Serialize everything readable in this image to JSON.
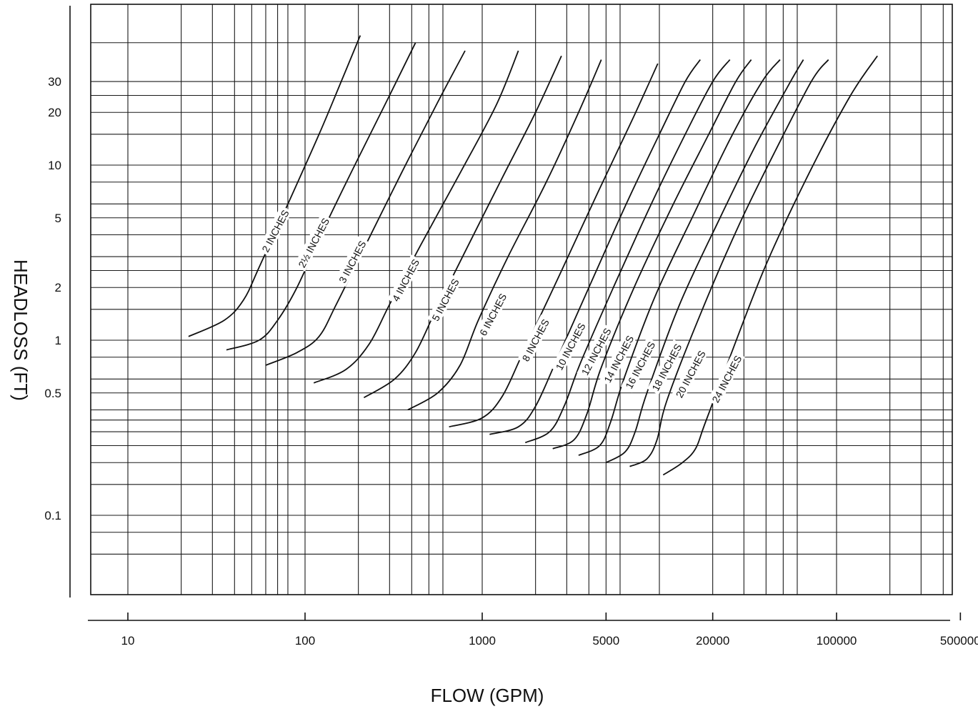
{
  "chart_data": {
    "type": "line",
    "xlabel": "FLOW (GPM)",
    "ylabel": "HEADLOSS  (FT)",
    "x_scale": "log",
    "y_scale": "log",
    "xlim": [
      6,
      600000
    ],
    "ylim": [
      0.04,
      80
    ],
    "grid": true,
    "x_ticks": [
      {
        "value": 10,
        "label": "10"
      },
      {
        "value": 100,
        "label": "100"
      },
      {
        "value": 1000,
        "label": "1000"
      },
      {
        "value": 5000,
        "label": "5000"
      },
      {
        "value": 20000,
        "label": "20000"
      },
      {
        "value": 100000,
        "label": "100000"
      },
      {
        "value": 500000,
        "label": "500000"
      }
    ],
    "y_ticks": [
      {
        "value": 30,
        "label": "30"
      },
      {
        "value": 20,
        "label": "20"
      },
      {
        "value": 10,
        "label": "10"
      },
      {
        "value": 5,
        "label": "5"
      },
      {
        "value": 2,
        "label": "2"
      },
      {
        "value": 1,
        "label": "1"
      },
      {
        "value": 0.5,
        "label": "0.5"
      },
      {
        "value": 0.1,
        "label": "0.1"
      }
    ],
    "x_gridlines": [
      10,
      20,
      30,
      40,
      50,
      60,
      70,
      80,
      100,
      200,
      300,
      400,
      500,
      600,
      1000,
      2000,
      3000,
      4000,
      5000,
      6000,
      10000,
      20000,
      30000,
      40000,
      50000,
      60000,
      100000,
      200000,
      300000,
      400000,
      500000
    ],
    "y_gridlines": [
      0.06,
      0.08,
      0.1,
      0.15,
      0.2,
      0.25,
      0.3,
      0.35,
      0.4,
      0.5,
      0.6,
      0.8,
      1,
      1.5,
      2,
      2.5,
      3,
      4,
      5,
      6,
      8,
      10,
      15,
      20,
      25,
      30,
      50
    ],
    "series": [
      {
        "name": "2 INCHES",
        "points": [
          [
            22,
            1.05
          ],
          [
            35,
            1.3
          ],
          [
            45,
            1.7
          ],
          [
            55,
            2.6
          ],
          [
            80,
            6
          ],
          [
            120,
            15
          ],
          [
            160,
            30
          ],
          [
            205,
            55
          ]
        ]
      },
      {
        "name": "2½ INCHES",
        "points": [
          [
            36,
            0.88
          ],
          [
            55,
            1.0
          ],
          [
            70,
            1.3
          ],
          [
            90,
            2.0
          ],
          [
            130,
            4.5
          ],
          [
            200,
            11
          ],
          [
            300,
            25
          ],
          [
            420,
            50
          ]
        ]
      },
      {
        "name": "3 INCHES",
        "points": [
          [
            60,
            0.72
          ],
          [
            90,
            0.85
          ],
          [
            120,
            1.05
          ],
          [
            150,
            1.6
          ],
          [
            220,
            3.5
          ],
          [
            350,
            9
          ],
          [
            550,
            22
          ],
          [
            800,
            45
          ]
        ]
      },
      {
        "name": "4 INCHES",
        "points": [
          [
            112,
            0.57
          ],
          [
            170,
            0.68
          ],
          [
            230,
            0.95
          ],
          [
            300,
            1.6
          ],
          [
            450,
            3.5
          ],
          [
            750,
            9
          ],
          [
            1200,
            22
          ],
          [
            1600,
            45
          ]
        ]
      },
      {
        "name": "5 INCHES",
        "points": [
          [
            215,
            0.47
          ],
          [
            320,
            0.6
          ],
          [
            420,
            0.85
          ],
          [
            550,
            1.5
          ],
          [
            800,
            3.2
          ],
          [
            1300,
            8.5
          ],
          [
            2000,
            20
          ],
          [
            2800,
            42
          ]
        ]
      },
      {
        "name": "6 INCHES",
        "points": [
          [
            380,
            0.4
          ],
          [
            560,
            0.5
          ],
          [
            750,
            0.72
          ],
          [
            950,
            1.3
          ],
          [
            1400,
            3
          ],
          [
            2300,
            8
          ],
          [
            3500,
            20
          ],
          [
            4700,
            40
          ]
        ]
      },
      {
        "name": "8 INCHES",
        "points": [
          [
            650,
            0.32
          ],
          [
            1000,
            0.36
          ],
          [
            1300,
            0.48
          ],
          [
            1700,
            0.85
          ],
          [
            2700,
            2.3
          ],
          [
            4500,
            7
          ],
          [
            7000,
            18
          ],
          [
            9800,
            38
          ]
        ]
      },
      {
        "name": "10 INCHES",
        "points": [
          [
            1100,
            0.29
          ],
          [
            1600,
            0.32
          ],
          [
            2000,
            0.42
          ],
          [
            2600,
            0.75
          ],
          [
            4000,
            2
          ],
          [
            6500,
            6
          ],
          [
            10000,
            15
          ],
          [
            14000,
            30
          ],
          [
            17000,
            40
          ]
        ]
      },
      {
        "name": "12 INCHES",
        "points": [
          [
            1750,
            0.26
          ],
          [
            2400,
            0.3
          ],
          [
            2900,
            0.42
          ],
          [
            3600,
            0.75
          ],
          [
            5500,
            2
          ],
          [
            9000,
            6
          ],
          [
            14000,
            15
          ],
          [
            20000,
            30
          ],
          [
            25000,
            40
          ]
        ]
      },
      {
        "name": "14 INCHES",
        "points": [
          [
            2500,
            0.24
          ],
          [
            3300,
            0.27
          ],
          [
            3900,
            0.38
          ],
          [
            4700,
            0.7
          ],
          [
            7200,
            2
          ],
          [
            12000,
            6
          ],
          [
            19000,
            15
          ],
          [
            27000,
            30
          ],
          [
            33000,
            40
          ]
        ]
      },
      {
        "name": "16 INCHES",
        "points": [
          [
            3500,
            0.22
          ],
          [
            4600,
            0.25
          ],
          [
            5300,
            0.34
          ],
          [
            6300,
            0.6
          ],
          [
            9500,
            1.8
          ],
          [
            16000,
            5.5
          ],
          [
            25000,
            14
          ],
          [
            38000,
            30
          ],
          [
            48000,
            40
          ]
        ]
      },
      {
        "name": "18 INCHES",
        "points": [
          [
            5000,
            0.2
          ],
          [
            6400,
            0.23
          ],
          [
            7300,
            0.3
          ],
          [
            8500,
            0.5
          ],
          [
            13000,
            1.6
          ],
          [
            22000,
            5
          ],
          [
            35000,
            13
          ],
          [
            55000,
            30
          ],
          [
            65000,
            40
          ]
        ]
      },
      {
        "name": "20 INCHES",
        "points": [
          [
            6800,
            0.19
          ],
          [
            8500,
            0.21
          ],
          [
            9700,
            0.27
          ],
          [
            11000,
            0.45
          ],
          [
            17000,
            1.4
          ],
          [
            28000,
            4.5
          ],
          [
            45000,
            12
          ],
          [
            72000,
            30
          ],
          [
            90000,
            40
          ]
        ]
      },
      {
        "name": "24 INCHES",
        "points": [
          [
            10500,
            0.17
          ],
          [
            13500,
            0.2
          ],
          [
            16000,
            0.24
          ],
          [
            18000,
            0.33
          ],
          [
            25000,
            0.8
          ],
          [
            40000,
            2.7
          ],
          [
            70000,
            9
          ],
          [
            120000,
            25
          ],
          [
            170000,
            42
          ]
        ]
      }
    ],
    "curve_labels": [
      {
        "series": "2 INCHES",
        "at": [
          68,
          4.2
        ]
      },
      {
        "series": "2½ INCHES",
        "at": [
          112,
          3.6
        ]
      },
      {
        "series": "3 INCHES",
        "at": [
          185,
          2.8
        ]
      },
      {
        "series": "4 INCHES",
        "at": [
          370,
          2.2
        ]
      },
      {
        "series": "5 INCHES",
        "at": [
          620,
          1.7
        ]
      },
      {
        "series": "6 INCHES",
        "at": [
          1150,
          1.4
        ]
      },
      {
        "series": "8 INCHES",
        "at": [
          2000,
          1.0
        ]
      },
      {
        "series": "10 INCHES",
        "at": [
          3150,
          0.92
        ]
      },
      {
        "series": "12 INCHES",
        "at": [
          4400,
          0.86
        ]
      },
      {
        "series": "14 INCHES",
        "at": [
          5900,
          0.78
        ]
      },
      {
        "series": "16 INCHES",
        "at": [
          7800,
          0.72
        ]
      },
      {
        "series": "18 INCHES",
        "at": [
          11000,
          0.7
        ]
      },
      {
        "series": "20 INCHES",
        "at": [
          15000,
          0.64
        ]
      },
      {
        "series": "24 INCHES",
        "at": [
          24000,
          0.6
        ]
      }
    ]
  }
}
